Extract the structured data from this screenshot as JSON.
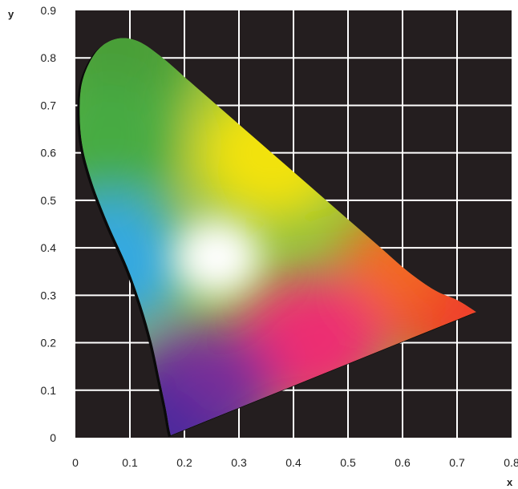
{
  "chart_data": {
    "type": "area",
    "xlabel": "x",
    "ylabel": "y",
    "xlim": [
      0,
      0.8
    ],
    "ylim": [
      0,
      0.9
    ],
    "x_ticks": [
      "0",
      "0.1",
      "0.2",
      "0.3",
      "0.4",
      "0.5",
      "0.6",
      "0.7",
      "0.8"
    ],
    "y_ticks": [
      "0",
      "0.1",
      "0.2",
      "0.3",
      "0.4",
      "0.5",
      "0.6",
      "0.7",
      "0.8",
      "0.9"
    ],
    "grid": true,
    "background_color": "#241e1f",
    "grid_color": "#ffffff",
    "series": [
      {
        "x": [
          0.175,
          0.172,
          0.166,
          0.155,
          0.14,
          0.12,
          0.095,
          0.06,
          0.03,
          0.012,
          0.008,
          0.015,
          0.04,
          0.075,
          0.115,
          0.16,
          0.21,
          0.26,
          0.31,
          0.36,
          0.41,
          0.46,
          0.51,
          0.56,
          0.61,
          0.66,
          0.7,
          0.735,
          0.175
        ],
        "y": [
          0.005,
          0.02,
          0.06,
          0.12,
          0.2,
          0.28,
          0.36,
          0.45,
          0.54,
          0.62,
          0.7,
          0.76,
          0.815,
          0.84,
          0.835,
          0.8,
          0.75,
          0.7,
          0.65,
          0.6,
          0.55,
          0.5,
          0.45,
          0.4,
          0.35,
          0.31,
          0.29,
          0.265,
          0.005
        ]
      }
    ],
    "color_stops": [
      {
        "x": 0.08,
        "y": 0.82,
        "color": "#4a9e38"
      },
      {
        "x": 0.06,
        "y": 0.62,
        "color": "#47ab44"
      },
      {
        "x": 0.36,
        "y": 0.6,
        "color": "#f2e210"
      },
      {
        "x": 0.62,
        "y": 0.34,
        "color": "#f26a24"
      },
      {
        "x": 0.72,
        "y": 0.275,
        "color": "#ee3f2a"
      },
      {
        "x": 0.43,
        "y": 0.2,
        "color": "#ec2e72"
      },
      {
        "x": 0.23,
        "y": 0.1,
        "color": "#7a2f98"
      },
      {
        "x": 0.17,
        "y": 0.02,
        "color": "#4b2a9d"
      },
      {
        "x": 0.07,
        "y": 0.37,
        "color": "#35a9e0"
      },
      {
        "x": 0.26,
        "y": 0.38,
        "color": "#ffffff"
      }
    ]
  }
}
